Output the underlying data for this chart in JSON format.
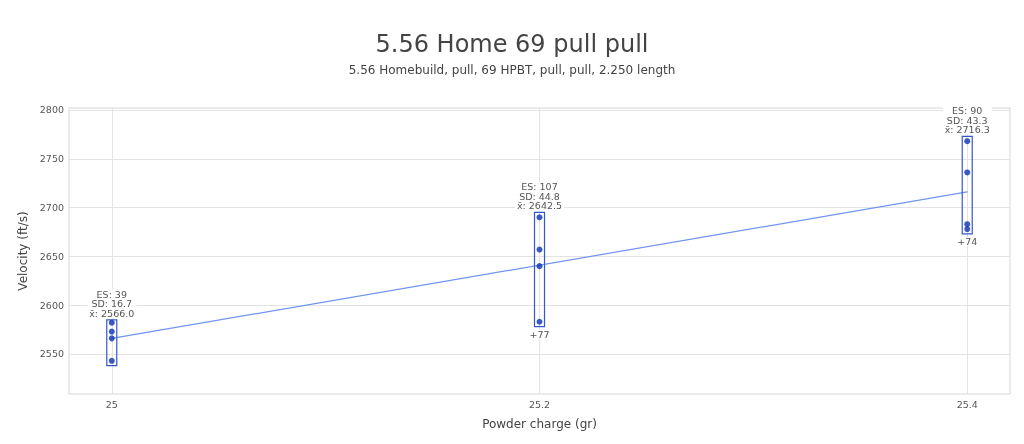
{
  "chart_data": {
    "type": "scatter",
    "title": "5.56 Home 69 pull pull",
    "subtitle": "5.56 Homebuild, pull, 69 HPBT, pull, pull, 2.250 length",
    "xlabel": "Powder charge (gr)",
    "ylabel": "Velocity (ft/s)",
    "xlim": [
      24.98,
      25.42
    ],
    "xticks": [
      25,
      25.2,
      25.4
    ],
    "ylim": [
      2509,
      2802
    ],
    "yticks": [
      2550,
      2600,
      2650,
      2700,
      2750,
      2800
    ],
    "grid": true,
    "series": [
      {
        "type": "bar",
        "x": [
          25,
          25.2,
          25.4
        ],
        "base": [
          2538,
          2578,
          2673
        ],
        "values": [
          47,
          117,
          100
        ],
        "color": "#3458c8"
      },
      {
        "type": "line",
        "x": [
          25,
          25.4
        ],
        "values": [
          2566,
          2716
        ],
        "color": "#7094f0"
      },
      {
        "marker": "circle",
        "x": [
          25,
          25,
          25,
          25,
          25.2,
          25.2,
          25.2,
          25.2,
          25.4,
          25.4,
          25.4,
          25.4
        ],
        "values": [
          2582,
          2573,
          2566,
          2543,
          2690,
          2657,
          2640,
          2583,
          2768,
          2736,
          2683,
          2678
        ],
        "color": "#0c30b4"
      }
    ],
    "annotations": [
      {
        "text": "ES: 39\nSD: 16.7\nx̄: 2566.0",
        "x": 25,
        "y": 2585
      },
      {
        "text": "ES: 107\nSD: 44.8\nx̄: 2642.5",
        "x": 25.2,
        "y": 2695
      },
      {
        "text": "ES: 90\nSD: 43.3\nx̄: 2716.3",
        "x": 25.4,
        "y": 2773
      },
      {
        "text": "+77",
        "x": 25.2,
        "y": 2578
      },
      {
        "text": "+74",
        "x": 25.4,
        "y": 2673
      }
    ]
  }
}
